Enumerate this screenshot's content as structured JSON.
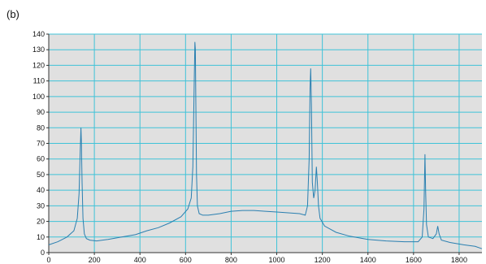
{
  "panel_label": "(b)",
  "chart_data": {
    "type": "line",
    "title": "",
    "xlabel": "",
    "ylabel": "",
    "xlim": [
      0,
      1900
    ],
    "ylim": [
      0,
      140
    ],
    "x_ticks": [
      0,
      200,
      400,
      600,
      800,
      1000,
      1200,
      1400,
      1600,
      1800
    ],
    "y_ticks": [
      0,
      10,
      20,
      30,
      40,
      50,
      60,
      70,
      80,
      90,
      100,
      110,
      120,
      130,
      140
    ],
    "grid": true,
    "colors": {
      "plot_background": "#e0e0e0",
      "grid": "#3fc3d8",
      "line": "#2a7fb0"
    },
    "series": [
      {
        "x": [
          0,
          40,
          80,
          110,
          125,
          133,
          138,
          141,
          143,
          146,
          150,
          156,
          165,
          180,
          210,
          260,
          320,
          380,
          430,
          480,
          530,
          580,
          610,
          625,
          632,
          637,
          641,
          643,
          645,
          648,
          652,
          660,
          675,
          700,
          750,
          800,
          850,
          900,
          950,
          1000,
          1050,
          1100,
          1125,
          1135,
          1142,
          1146,
          1149,
          1152,
          1156,
          1162,
          1168,
          1174,
          1178,
          1183,
          1190,
          1210,
          1260,
          1320,
          1400,
          1480,
          1560,
          1620,
          1638,
          1646,
          1650,
          1653,
          1657,
          1665,
          1685,
          1700,
          1706,
          1712,
          1722,
          1760,
          1820,
          1870,
          1900
        ],
        "y": [
          5,
          7,
          10,
          14,
          22,
          38,
          65,
          80,
          72,
          45,
          22,
          12,
          9,
          8,
          7.5,
          8.5,
          10,
          11.5,
          14,
          16,
          19,
          23,
          28,
          35,
          55,
          100,
          135,
          130,
          100,
          50,
          30,
          25,
          24,
          24,
          25,
          26.5,
          27,
          27,
          26.5,
          26,
          25.5,
          25,
          24,
          30,
          60,
          105,
          118,
          95,
          45,
          35,
          40,
          55,
          45,
          30,
          22,
          17,
          13,
          10.5,
          8.5,
          7.5,
          7,
          7,
          10,
          28,
          63,
          40,
          18,
          10,
          9,
          12,
          17,
          12,
          8,
          6.5,
          5,
          4,
          2.5
        ]
      }
    ]
  }
}
